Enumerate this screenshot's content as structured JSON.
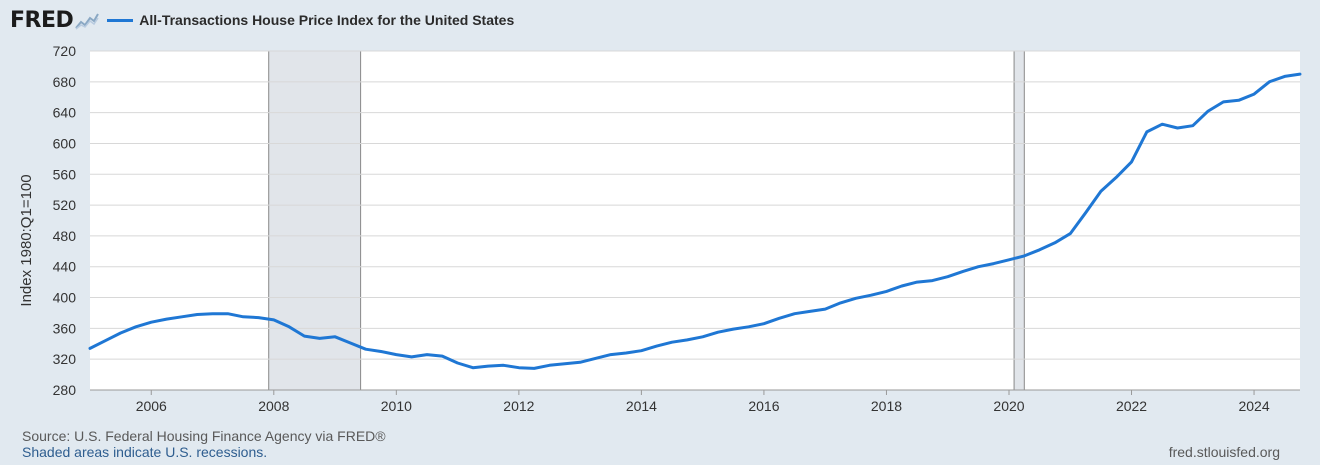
{
  "brand": {
    "logo_text": "FRED",
    "icon": "fred-logo-graph-icon"
  },
  "legend": {
    "series_title": "All-Transactions House Price Index for the United States",
    "color": "#1f77d4"
  },
  "footer": {
    "source": "Source: U.S. Federal Housing Finance Agency via FRED®",
    "note": "Shaded areas indicate U.S. recessions.",
    "site": "fred.stlouisfed.org"
  },
  "chart_data": {
    "type": "line",
    "title": "All-Transactions House Price Index for the United States",
    "ylabel": "Index 1980:Q1=100",
    "xlabel": "",
    "ylim": [
      280,
      720
    ],
    "xlim": [
      2005.0,
      2024.75
    ],
    "yticks": [
      280,
      320,
      360,
      400,
      440,
      480,
      520,
      560,
      600,
      640,
      680,
      720
    ],
    "xticks": [
      2006,
      2008,
      2010,
      2012,
      2014,
      2016,
      2018,
      2020,
      2022,
      2024
    ],
    "grid": true,
    "legend_position": "top-left",
    "recessions": [
      {
        "start": 2007.917,
        "end": 2009.417
      },
      {
        "start": 2020.083,
        "end": 2020.25
      }
    ],
    "series": [
      {
        "name": "All-Transactions House Price Index for the United States",
        "color": "#1f77d4",
        "x": [
          2005.0,
          2005.25,
          2005.5,
          2005.75,
          2006.0,
          2006.25,
          2006.5,
          2006.75,
          2007.0,
          2007.25,
          2007.5,
          2007.75,
          2008.0,
          2008.25,
          2008.5,
          2008.75,
          2009.0,
          2009.25,
          2009.5,
          2009.75,
          2010.0,
          2010.25,
          2010.5,
          2010.75,
          2011.0,
          2011.25,
          2011.5,
          2011.75,
          2012.0,
          2012.25,
          2012.5,
          2012.75,
          2013.0,
          2013.25,
          2013.5,
          2013.75,
          2014.0,
          2014.25,
          2014.5,
          2014.75,
          2015.0,
          2015.25,
          2015.5,
          2015.75,
          2016.0,
          2016.25,
          2016.5,
          2016.75,
          2017.0,
          2017.25,
          2017.5,
          2017.75,
          2018.0,
          2018.25,
          2018.5,
          2018.75,
          2019.0,
          2019.25,
          2019.5,
          2019.75,
          2020.0,
          2020.25,
          2020.5,
          2020.75,
          2021.0,
          2021.25,
          2021.5,
          2021.75,
          2022.0,
          2022.25,
          2022.5,
          2022.75,
          2023.0,
          2023.25,
          2023.5,
          2023.75,
          2024.0,
          2024.25,
          2024.5,
          2024.75
        ],
        "values": [
          334,
          344,
          354,
          362,
          368,
          372,
          375,
          378,
          379,
          379,
          375,
          374,
          371,
          362,
          350,
          347,
          349,
          341,
          333,
          330,
          326,
          323,
          326,
          324,
          315,
          309,
          311,
          312,
          309,
          308,
          312,
          314,
          316,
          321,
          326,
          328,
          331,
          337,
          342,
          345,
          349,
          355,
          359,
          362,
          366,
          373,
          379,
          382,
          385,
          393,
          399,
          403,
          408,
          415,
          420,
          422,
          427,
          434,
          440,
          444,
          449,
          454,
          462,
          471,
          483,
          510,
          538,
          556,
          576,
          615,
          625,
          620,
          623,
          642,
          654,
          656,
          664,
          680,
          687,
          690
        ]
      }
    ]
  }
}
